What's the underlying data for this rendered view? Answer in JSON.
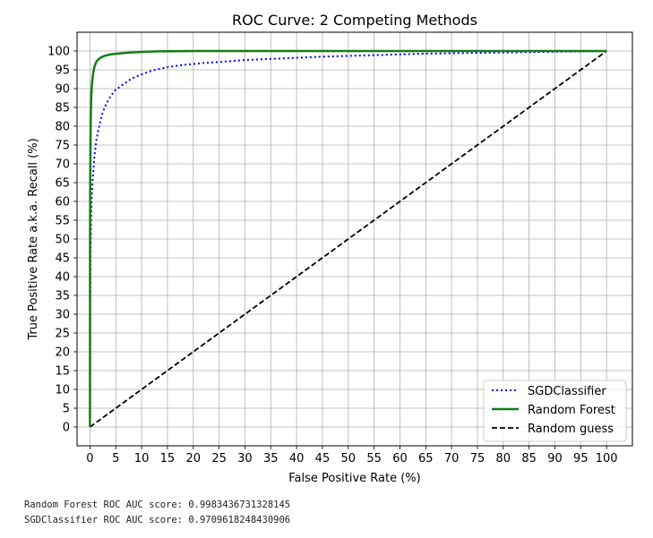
{
  "chart_data": {
    "type": "line",
    "title": "ROC Curve: 2 Competing Methods",
    "xlabel": "False Positive Rate (%)",
    "ylabel": "True Positive Rate a.k.a. Recall (%)",
    "xlim": [
      -2.5,
      105
    ],
    "ylim": [
      -5,
      105
    ],
    "xticks": [
      "0",
      "5",
      "10",
      "15",
      "20",
      "25",
      "30",
      "35",
      "40",
      "45",
      "50",
      "55",
      "60",
      "65",
      "70",
      "75",
      "80",
      "85",
      "90",
      "95",
      "100"
    ],
    "yticks": [
      "0",
      "5",
      "10",
      "15",
      "20",
      "25",
      "30",
      "35",
      "40",
      "45",
      "50",
      "55",
      "60",
      "65",
      "70",
      "75",
      "80",
      "85",
      "90",
      "95",
      "100"
    ],
    "grid": true,
    "legend_position": "lower-right",
    "series": [
      {
        "name": "SGDClassifier",
        "color": "#0000ff",
        "style": "dotted",
        "x": [
          0,
          0.05,
          0.1,
          0.2,
          0.3,
          0.5,
          0.8,
          1.2,
          1.7,
          2.3,
          3,
          4,
          5,
          6.5,
          8,
          10,
          12,
          15,
          18,
          22,
          26,
          30,
          35,
          40,
          45,
          50,
          55,
          60,
          65,
          70,
          75,
          80,
          85,
          90,
          95,
          100
        ],
        "y": [
          0,
          30,
          45,
          55,
          60,
          65,
          71,
          76,
          79.5,
          83,
          85.5,
          88,
          89.7,
          91.2,
          92.6,
          93.8,
          94.8,
          95.7,
          96.3,
          96.8,
          97.2,
          97.6,
          97.9,
          98.2,
          98.5,
          98.7,
          98.9,
          99.1,
          99.3,
          99.4,
          99.5,
          99.6,
          99.7,
          99.8,
          99.9,
          100
        ]
      },
      {
        "name": "Random Forest",
        "color": "#137d13",
        "style": "solid",
        "x": [
          0,
          0.02,
          0.05,
          0.1,
          0.15,
          0.25,
          0.4,
          0.6,
          0.9,
          1.3,
          2,
          3,
          4,
          6,
          8,
          10,
          13,
          16,
          20,
          30,
          40,
          50,
          60,
          70,
          80,
          90,
          100
        ],
        "y": [
          0,
          50,
          65,
          75,
          82,
          88,
          91.5,
          94,
          96,
          97.3,
          98.2,
          98.8,
          99.1,
          99.4,
          99.6,
          99.75,
          99.9,
          99.95,
          100,
          100,
          100,
          100,
          100,
          100,
          100,
          100,
          100
        ]
      },
      {
        "name": "Random guess",
        "color": "#000000",
        "style": "dashed",
        "x": [
          0,
          100
        ],
        "y": [
          0,
          100
        ]
      }
    ]
  },
  "notes": {
    "line1": "Random Forest ROC AUC score: 0.9983436731328145",
    "line2": "SGDClassifier ROC AUC score: 0.9709618248430906"
  }
}
